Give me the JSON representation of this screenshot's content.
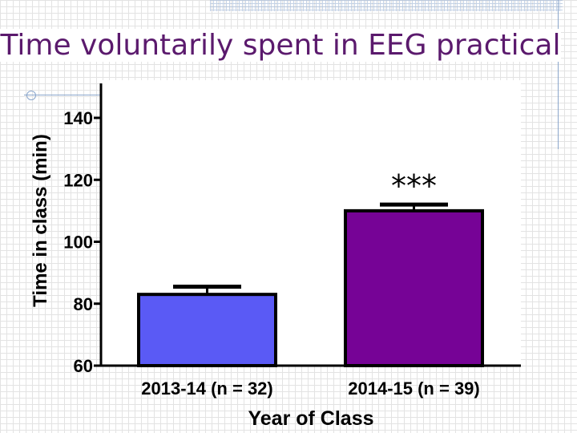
{
  "slide": {
    "title": "Time voluntarily spent in EEG practical"
  },
  "chart_data": {
    "type": "bar",
    "title": "",
    "xlabel": "Year of Class",
    "ylabel": "Time in class (min)",
    "ylim": [
      60,
      140
    ],
    "yticks": [
      60,
      80,
      100,
      120,
      140
    ],
    "categories": [
      "2013-14 (n = 32)",
      "2014-15 (n = 39)"
    ],
    "values": [
      83,
      110
    ],
    "errors": [
      2.5,
      2.0
    ],
    "colors": [
      "#5a5af5",
      "#760396"
    ],
    "significance": [
      "",
      "***"
    ],
    "grid": false,
    "legend": "none"
  }
}
